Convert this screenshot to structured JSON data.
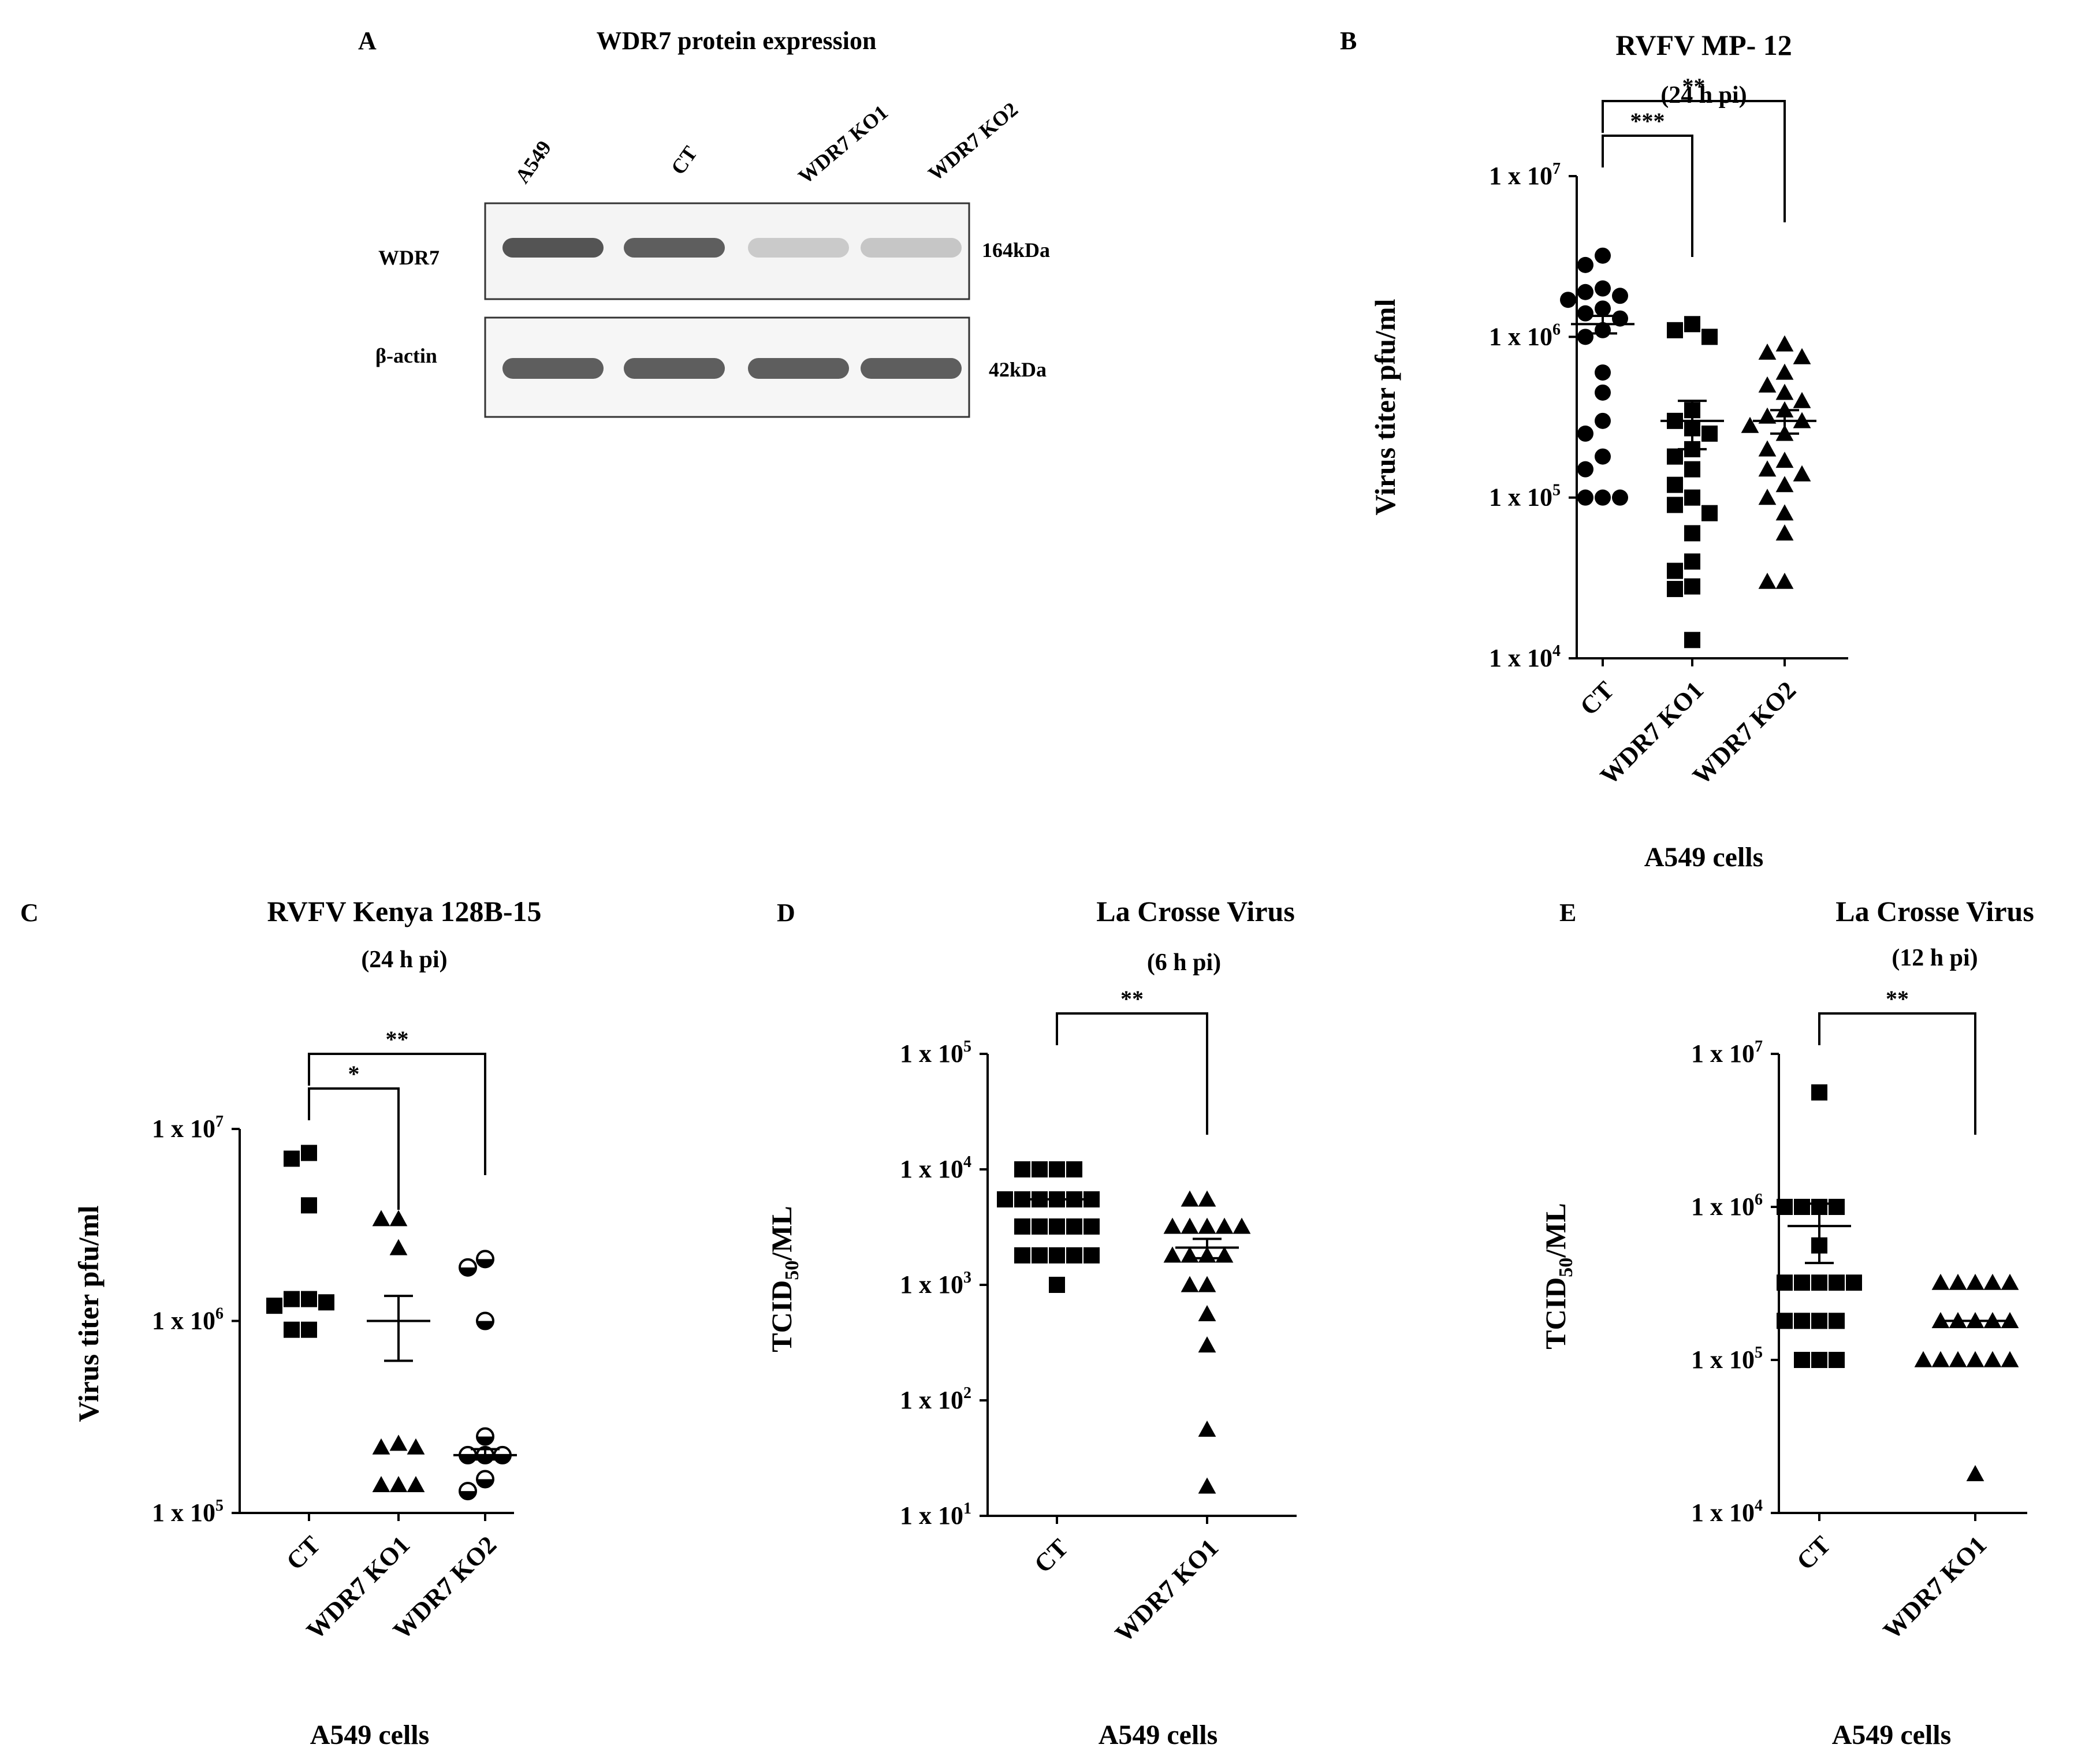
{
  "colors": {
    "ink": "#000000",
    "background": "#ffffff",
    "blot_frame": "#333333"
  },
  "panel_a": {
    "letter": "A",
    "title": "WDR7 protein expression",
    "lanes": [
      "A549",
      "CT",
      "WDR7 KO1",
      "WDR7 KO2"
    ],
    "rows": [
      {
        "label": "WDR7",
        "size": "164kDa",
        "band_intensity": [
          0.8,
          0.75,
          0.18,
          0.2
        ]
      },
      {
        "label": "β-actin",
        "size": "42kDa",
        "band_intensity": [
          0.75,
          0.75,
          0.75,
          0.75
        ]
      }
    ]
  },
  "chart_data": [
    {
      "id": "B",
      "letter": "B",
      "type": "scatter",
      "title": "RVFV MP- 12",
      "subtitle": "(24 h pi)",
      "ylabel": "Virus titer pfu/ml",
      "xlabel": "A549 cells",
      "yscale": "log",
      "ylim": [
        10000,
        10000000
      ],
      "yticks": [
        {
          "value": 10000000,
          "base": "1 x 10",
          "exp": "7"
        },
        {
          "value": 1000000,
          "base": "1 x 10",
          "exp": "6"
        },
        {
          "value": 100000,
          "base": "1 x 10",
          "exp": "5"
        },
        {
          "value": 10000,
          "base": "1 x 10",
          "exp": "4"
        }
      ],
      "categories": [
        "CT",
        "WDR7 KO1",
        "WDR7 KO2"
      ],
      "series": [
        {
          "category": "CT",
          "marker": "circle",
          "mean": 1200000,
          "sem": [
            1050000,
            1350000
          ],
          "values": [
            3200000,
            2800000,
            2000000,
            1900000,
            1800000,
            1700000,
            1500000,
            1400000,
            1300000,
            1100000,
            1000000,
            600000,
            450000,
            300000,
            250000,
            180000,
            150000,
            100000,
            100000,
            100000
          ]
        },
        {
          "category": "WDR7 KO1",
          "marker": "square",
          "mean": 300000,
          "sem": [
            200000,
            400000
          ],
          "values": [
            1200000,
            1100000,
            1000000,
            350000,
            300000,
            270000,
            250000,
            200000,
            180000,
            150000,
            120000,
            100000,
            90000,
            80000,
            60000,
            40000,
            35000,
            28000,
            27000,
            13000
          ]
        },
        {
          "category": "WDR7 KO2",
          "marker": "triangle",
          "mean": 300000,
          "sem": [
            250000,
            350000
          ],
          "values": [
            900000,
            800000,
            750000,
            600000,
            500000,
            450000,
            400000,
            350000,
            320000,
            300000,
            280000,
            250000,
            200000,
            170000,
            150000,
            140000,
            120000,
            100000,
            80000,
            60000,
            30000,
            30000
          ]
        }
      ],
      "brackets": [
        {
          "from": "CT",
          "to": "WDR7 KO1",
          "label": "***"
        },
        {
          "from": "CT",
          "to": "WDR7 KO2",
          "label": "**"
        }
      ]
    },
    {
      "id": "C",
      "letter": "C",
      "type": "scatter",
      "title": "RVFV Kenya 128B-15",
      "subtitle": "(24 h pi)",
      "ylabel": "Virus titer pfu/ml",
      "xlabel": "A549 cells",
      "yscale": "log",
      "ylim": [
        100000,
        10000000
      ],
      "yticks": [
        {
          "value": 10000000,
          "base": "1 x 10",
          "exp": "7"
        },
        {
          "value": 1000000,
          "base": "1 x 10",
          "exp": "6"
        },
        {
          "value": 100000,
          "base": "1 x 10",
          "exp": "5"
        }
      ],
      "categories": [
        "CT",
        "WDR7 KO1",
        "WDR7 KO2"
      ],
      "series": [
        {
          "category": "CT",
          "marker": "square",
          "mean": null,
          "sem": null,
          "values": [
            7500000,
            7000000,
            4000000,
            1300000,
            1300000,
            1250000,
            1200000,
            900000,
            900000
          ]
        },
        {
          "category": "WDR7 KO1",
          "marker": "triangle",
          "mean": 1000000,
          "sem": [
            620000,
            1350000
          ],
          "values": [
            3400000,
            3400000,
            2400000,
            230000,
            220000,
            220000,
            140000,
            140000,
            140000
          ]
        },
        {
          "category": "WDR7 KO2",
          "marker": "halfcircle",
          "mean": 200000,
          "sem": [
            190000,
            215000
          ],
          "values": [
            2100000,
            1900000,
            1000000,
            250000,
            200000,
            200000,
            200000,
            150000,
            130000
          ]
        }
      ],
      "brackets": [
        {
          "from": "CT",
          "to": "WDR7 KO1",
          "label": "*"
        },
        {
          "from": "CT",
          "to": "WDR7 KO2",
          "label": "**"
        }
      ]
    },
    {
      "id": "D",
      "letter": "D",
      "type": "scatter",
      "title": "La Crosse Virus",
      "subtitle": "(6 h pi)",
      "ylabel_main": "TCID",
      "ylabel_sub": "50",
      "ylabel_tail": "/ML",
      "xlabel": "A549 cells",
      "yscale": "log",
      "ylim": [
        10,
        100000
      ],
      "yticks": [
        {
          "value": 100000,
          "base": "1 x 10",
          "exp": "5"
        },
        {
          "value": 10000,
          "base": "1 x 10",
          "exp": "4"
        },
        {
          "value": 1000,
          "base": "1 x 10",
          "exp": "3"
        },
        {
          "value": 100,
          "base": "1 x 10",
          "exp": "2"
        },
        {
          "value": 10,
          "base": "1 x 10",
          "exp": "1"
        }
      ],
      "categories": [
        "CT",
        "WDR7 KO1"
      ],
      "series": [
        {
          "category": "CT",
          "marker": "square",
          "mean": 5500,
          "sem": null,
          "values": [
            10000,
            10000,
            10000,
            10000,
            5500,
            5500,
            5500,
            5500,
            5500,
            5500,
            3200,
            3200,
            3200,
            3200,
            3200,
            1800,
            1800,
            1800,
            1800,
            1800,
            1000
          ]
        },
        {
          "category": "WDR7 KO1",
          "marker": "triangle",
          "mean": 2100,
          "sem": [
            1700,
            2500
          ],
          "values": [
            5500,
            5500,
            3200,
            3200,
            3200,
            3200,
            3200,
            1800,
            1800,
            1800,
            1800,
            1000,
            1000,
            560,
            300,
            56,
            18
          ]
        }
      ],
      "brackets": [
        {
          "from": "CT",
          "to": "WDR7 KO1",
          "label": "**"
        }
      ]
    },
    {
      "id": "E",
      "letter": "E",
      "type": "scatter",
      "title": "La Crosse Virus",
      "subtitle": "(12 h pi)",
      "ylabel_main": "TCID",
      "ylabel_sub": "50",
      "ylabel_tail": "/ML",
      "xlabel": "A549 cells",
      "yscale": "log",
      "ylim": [
        10000,
        10000000
      ],
      "yticks": [
        {
          "value": 10000000,
          "base": "1 x 10",
          "exp": "7"
        },
        {
          "value": 1000000,
          "base": "1 x 10",
          "exp": "6"
        },
        {
          "value": 100000,
          "base": "1 x 10",
          "exp": "5"
        },
        {
          "value": 10000,
          "base": "1 x 10",
          "exp": "4"
        }
      ],
      "categories": [
        "CT",
        "WDR7 KO1"
      ],
      "series": [
        {
          "category": "CT",
          "marker": "square",
          "mean": 750000,
          "sem": [
            430000,
            1050000
          ],
          "values": [
            5600000,
            1000000,
            1000000,
            1000000,
            1000000,
            560000,
            320000,
            320000,
            320000,
            320000,
            320000,
            180000,
            180000,
            180000,
            180000,
            100000,
            100000,
            100000
          ]
        },
        {
          "category": "WDR7 KO1",
          "marker": "triangle",
          "mean": 180000,
          "sem": null,
          "values": [
            320000,
            320000,
            320000,
            320000,
            320000,
            180000,
            180000,
            180000,
            180000,
            180000,
            100000,
            100000,
            100000,
            100000,
            100000,
            100000,
            18000
          ]
        }
      ],
      "brackets": [
        {
          "from": "CT",
          "to": "WDR7 KO1",
          "label": "**"
        }
      ]
    }
  ]
}
